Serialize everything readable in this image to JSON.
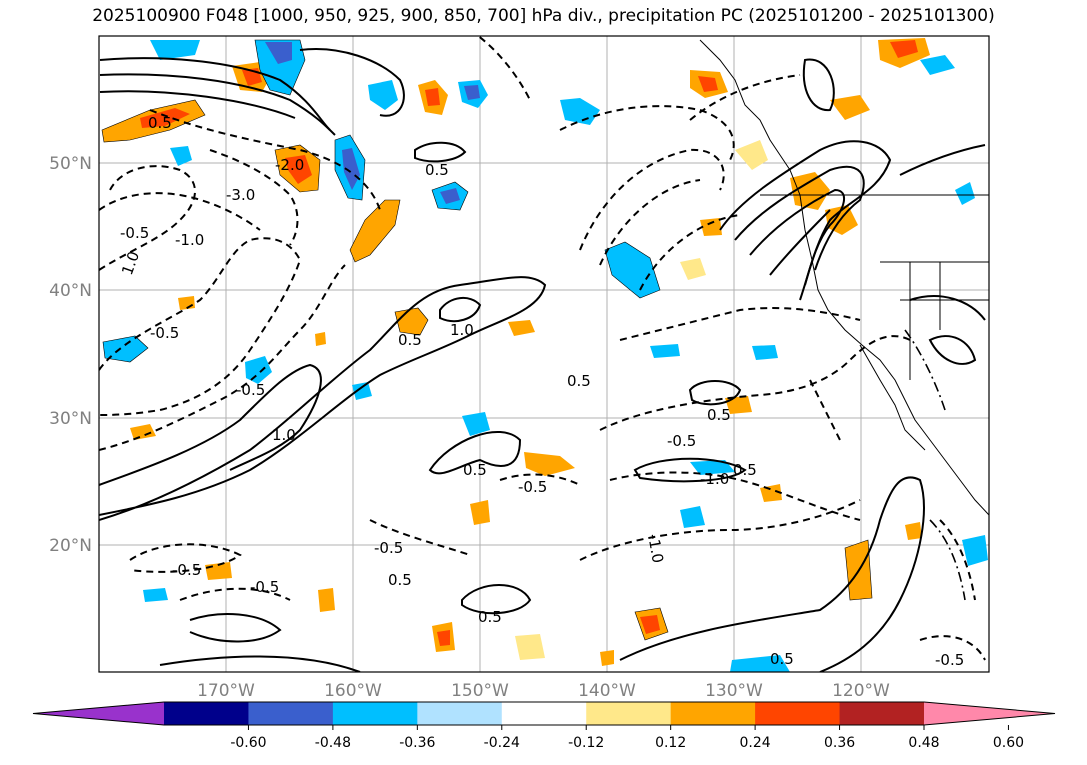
{
  "title": "2025100900 F048 [1000, 950, 925, 900, 850, 700] hPa div., precipitation PC (2025101200 - 2025101300)",
  "map": {
    "lat_labels": [
      "50°N",
      "40°N",
      "30°N",
      "20°N"
    ],
    "lon_labels": [
      "170°W",
      "160°W",
      "150°W",
      "140°W",
      "130°W",
      "120°W"
    ],
    "grid": true,
    "contour_labels": [
      "0.5",
      "-0.5",
      "1.0",
      "-1.0",
      "-3.0",
      "-2.0",
      "0.5",
      "-0.5",
      "1.0",
      "0.5",
      "-0.5",
      "0.5",
      "-0.5",
      "0.5",
      "0.5",
      "-0.5",
      "0.5",
      "-0.5",
      "-0.5",
      "-0.5",
      "0.5",
      "-1.0",
      "0.5",
      "1.0",
      "-1.0",
      "-0.5",
      "0.5"
    ]
  },
  "colorbar": {
    "ticks": [
      "-0.60",
      "-0.48",
      "-0.36",
      "-0.24",
      "-0.12",
      "0.12",
      "0.24",
      "0.36",
      "0.48",
      "0.60"
    ],
    "colors": [
      "#9932cc",
      "#00008b",
      "#3a5fcd",
      "#00bfff",
      "#b0e2ff",
      "#ffffff",
      "#ffe88a",
      "#ffa500",
      "#ff4500",
      "#b22222",
      "#ff88aa"
    ]
  }
}
